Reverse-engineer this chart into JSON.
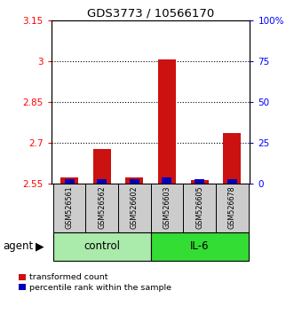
{
  "title": "GDS3773 / 10566170",
  "samples": [
    "GSM526561",
    "GSM526562",
    "GSM526602",
    "GSM526603",
    "GSM526605",
    "GSM526678"
  ],
  "groups": [
    "control",
    "control",
    "control",
    "IL-6",
    "IL-6",
    "IL-6"
  ],
  "red_tops": [
    2.572,
    2.678,
    2.572,
    3.005,
    2.563,
    2.735
  ],
  "blue_tops": [
    2.568,
    2.566,
    2.568,
    2.573,
    2.567,
    2.567
  ],
  "bar_bottom": 2.55,
  "ylim_left": [
    2.55,
    3.15
  ],
  "ylim_right": [
    0,
    100
  ],
  "yticks_left": [
    2.55,
    2.7,
    2.85,
    3.0,
    3.15
  ],
  "ytick_labels_left": [
    "2.55",
    "2.7",
    "2.85",
    "3",
    "3.15"
  ],
  "yticks_right": [
    0,
    25,
    50,
    75,
    100
  ],
  "ytick_labels_right": [
    "0",
    "25",
    "50",
    "75",
    "100%"
  ],
  "dotted_yticks": [
    2.7,
    2.85,
    3.0
  ],
  "control_color": "#aaeaaa",
  "il6_color": "#33dd33",
  "red_color": "#cc1111",
  "blue_color": "#0000bb",
  "legend_red": "transformed count",
  "legend_blue": "percentile rank within the sample",
  "agent_label": "agent",
  "bar_width": 0.55
}
